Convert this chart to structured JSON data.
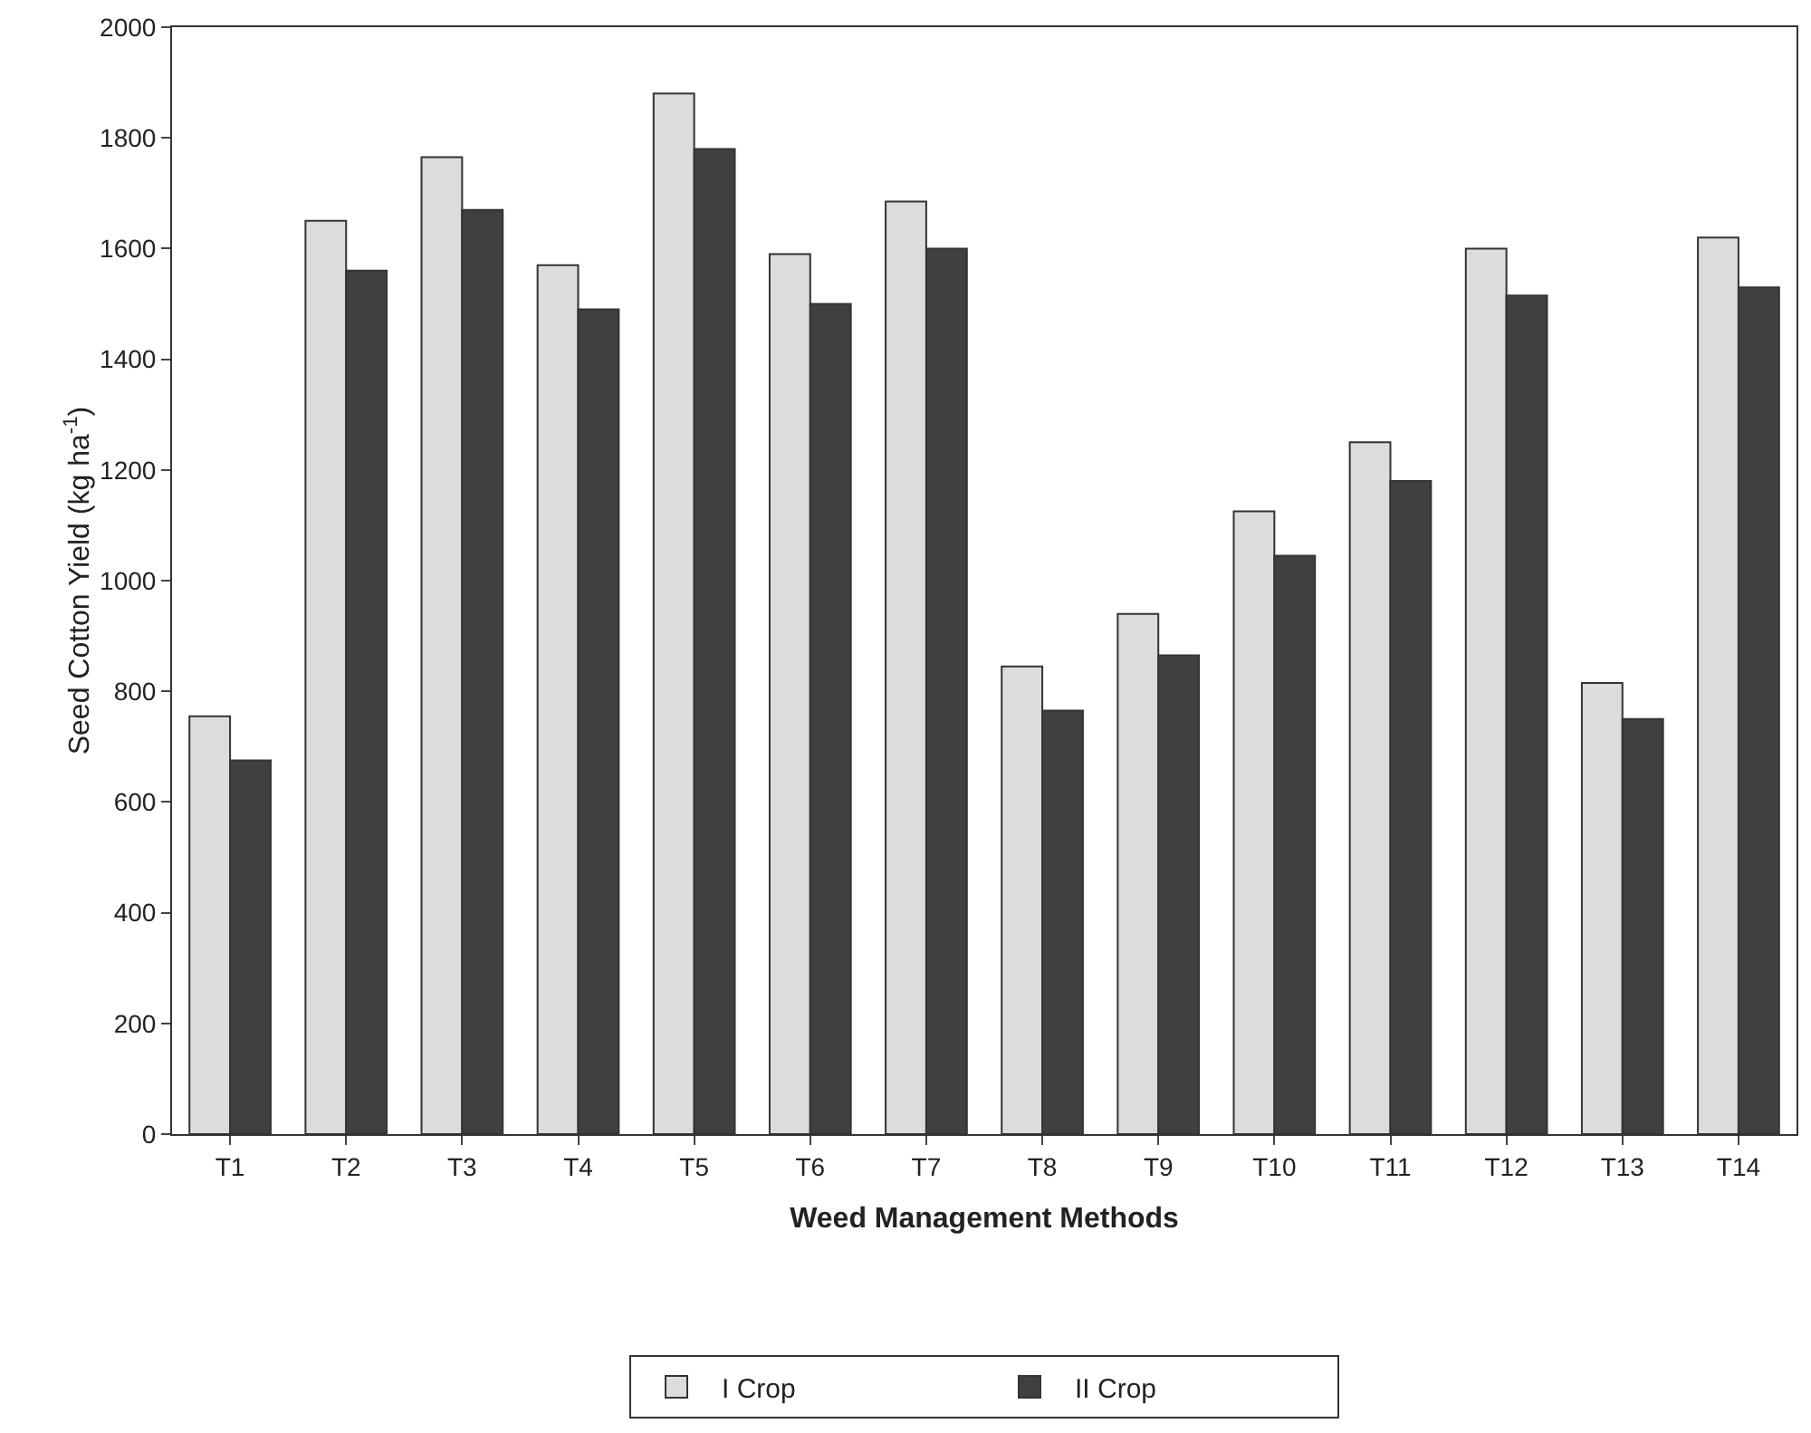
{
  "chart_data": {
    "type": "bar",
    "xlabel": "Weed Management Methods",
    "ylabel": "Seed Cotton Yield (kg ha$^{-1}$)",
    "categories": [
      "T1",
      "T2",
      "T3",
      "T4",
      "T5",
      "T6",
      "T7",
      "T8",
      "T9",
      "T10",
      "T11",
      "T12",
      "T13",
      "T14"
    ],
    "series": [
      {
        "name": "I Crop",
        "color": "#dcdcdc",
        "values": [
          755,
          1650,
          1765,
          1570,
          1880,
          1590,
          1685,
          845,
          940,
          1125,
          1250,
          1600,
          815,
          1620
        ]
      },
      {
        "name": "II Crop",
        "color": "#404040",
        "values": [
          675,
          1560,
          1670,
          1490,
          1780,
          1500,
          1600,
          765,
          865,
          1045,
          1180,
          1515,
          750,
          1530
        ]
      }
    ],
    "ylim": [
      0,
      2000
    ],
    "yticks": [
      0,
      200,
      400,
      600,
      800,
      1000,
      1200,
      1400,
      1600,
      1800,
      2000
    ],
    "grid": false,
    "legend": "bottom"
  }
}
